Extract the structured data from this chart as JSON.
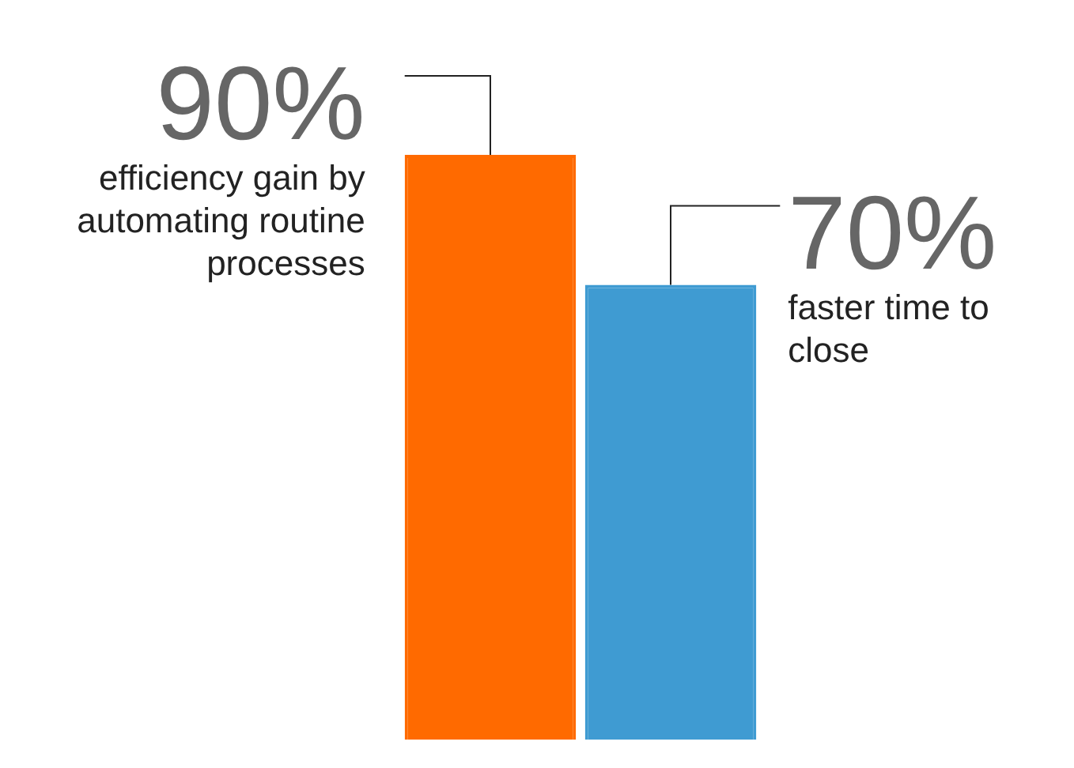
{
  "chart_data": {
    "type": "bar",
    "categories": [
      null,
      null
    ],
    "values": [
      90,
      70
    ],
    "colors": [
      "#ff6a00",
      "#3f9bd2"
    ],
    "value_labels": [
      "90%",
      "70%"
    ],
    "annotations": [
      "efficiency gain by automating routine processes",
      "faster time to close"
    ],
    "tick_labels": false
  }
}
